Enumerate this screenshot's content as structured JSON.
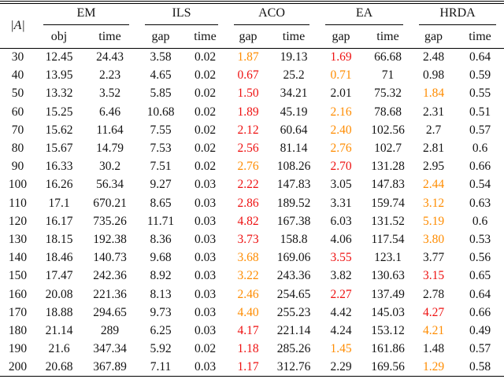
{
  "colors": {
    "red": "#ee1111",
    "orange": "#ff8c00",
    "ink": "#141414"
  },
  "table": {
    "corner_label": "|A|",
    "groups": [
      {
        "label": "EM",
        "sub": [
          "obj",
          "time"
        ]
      },
      {
        "label": "ILS",
        "sub": [
          "gap",
          "time"
        ]
      },
      {
        "label": "ACO",
        "sub": [
          "gap",
          "time"
        ]
      },
      {
        "label": "EA",
        "sub": [
          "gap",
          "time"
        ]
      },
      {
        "label": "HRDA",
        "sub": [
          "gap",
          "time"
        ]
      }
    ],
    "rows": [
      {
        "a": "30",
        "em_obj": "12.45",
        "em_time": "24.43",
        "ils_gap": "3.58",
        "ils_time": "0.02",
        "aco_gap": "1.87",
        "aco_gap_color": "orange",
        "aco_time": "19.13",
        "ea_gap": "1.69",
        "ea_gap_color": "red",
        "ea_time": "66.68",
        "hrda_gap": "2.48",
        "hrda_gap_color": "black",
        "hrda_time": "0.64"
      },
      {
        "a": "40",
        "em_obj": "13.95",
        "em_time": "2.23",
        "ils_gap": "4.65",
        "ils_time": "0.02",
        "aco_gap": "0.67",
        "aco_gap_color": "red",
        "aco_time": "25.2",
        "ea_gap": "0.71",
        "ea_gap_color": "orange",
        "ea_time": "71",
        "hrda_gap": "0.98",
        "hrda_gap_color": "black",
        "hrda_time": "0.59"
      },
      {
        "a": "50",
        "em_obj": "13.32",
        "em_time": "3.52",
        "ils_gap": "5.85",
        "ils_time": "0.02",
        "aco_gap": "1.50",
        "aco_gap_color": "red",
        "aco_time": "34.21",
        "ea_gap": "2.01",
        "ea_gap_color": "black",
        "ea_time": "75.32",
        "hrda_gap": "1.84",
        "hrda_gap_color": "orange",
        "hrda_time": "0.55"
      },
      {
        "a": "60",
        "em_obj": "15.25",
        "em_time": "6.46",
        "ils_gap": "10.68",
        "ils_time": "0.02",
        "aco_gap": "1.89",
        "aco_gap_color": "red",
        "aco_time": "45.19",
        "ea_gap": "2.16",
        "ea_gap_color": "orange",
        "ea_time": "78.68",
        "hrda_gap": "2.31",
        "hrda_gap_color": "black",
        "hrda_time": "0.51"
      },
      {
        "a": "70",
        "em_obj": "15.62",
        "em_time": "11.64",
        "ils_gap": "7.55",
        "ils_time": "0.02",
        "aco_gap": "2.12",
        "aco_gap_color": "red",
        "aco_time": "60.64",
        "ea_gap": "2.40",
        "ea_gap_color": "orange",
        "ea_time": "102.56",
        "hrda_gap": "2.7",
        "hrda_gap_color": "black",
        "hrda_time": "0.57"
      },
      {
        "a": "80",
        "em_obj": "15.67",
        "em_time": "14.79",
        "ils_gap": "7.53",
        "ils_time": "0.02",
        "aco_gap": "2.56",
        "aco_gap_color": "red",
        "aco_time": "81.14",
        "ea_gap": "2.76",
        "ea_gap_color": "orange",
        "ea_time": "102.7",
        "hrda_gap": "2.81",
        "hrda_gap_color": "black",
        "hrda_time": "0.6"
      },
      {
        "a": "90",
        "em_obj": "16.33",
        "em_time": "30.2",
        "ils_gap": "7.51",
        "ils_time": "0.02",
        "aco_gap": "2.76",
        "aco_gap_color": "orange",
        "aco_time": "108.26",
        "ea_gap": "2.70",
        "ea_gap_color": "red",
        "ea_time": "131.28",
        "hrda_gap": "2.95",
        "hrda_gap_color": "black",
        "hrda_time": "0.66"
      },
      {
        "a": "100",
        "em_obj": "16.26",
        "em_time": "56.34",
        "ils_gap": "9.27",
        "ils_time": "0.03",
        "aco_gap": "2.22",
        "aco_gap_color": "red",
        "aco_time": "147.83",
        "ea_gap": "3.05",
        "ea_gap_color": "black",
        "ea_time": "147.83",
        "hrda_gap": "2.44",
        "hrda_gap_color": "orange",
        "hrda_time": "0.54"
      },
      {
        "a": "110",
        "em_obj": "17.1",
        "em_time": "670.21",
        "ils_gap": "8.65",
        "ils_time": "0.03",
        "aco_gap": "2.86",
        "aco_gap_color": "red",
        "aco_time": "189.52",
        "ea_gap": "3.31",
        "ea_gap_color": "black",
        "ea_time": "159.74",
        "hrda_gap": "3.12",
        "hrda_gap_color": "orange",
        "hrda_time": "0.63"
      },
      {
        "a": "120",
        "em_obj": "16.17",
        "em_time": "735.26",
        "ils_gap": "11.71",
        "ils_time": "0.03",
        "aco_gap": "4.82",
        "aco_gap_color": "red",
        "aco_time": "167.38",
        "ea_gap": "6.03",
        "ea_gap_color": "black",
        "ea_time": "131.52",
        "hrda_gap": "5.19",
        "hrda_gap_color": "orange",
        "hrda_time": "0.6"
      },
      {
        "a": "130",
        "em_obj": "18.15",
        "em_time": "192.38",
        "ils_gap": "8.36",
        "ils_time": "0.03",
        "aco_gap": "3.73",
        "aco_gap_color": "red",
        "aco_time": "158.8",
        "ea_gap": "4.06",
        "ea_gap_color": "black",
        "ea_time": "117.54",
        "hrda_gap": "3.80",
        "hrda_gap_color": "orange",
        "hrda_time": "0.53"
      },
      {
        "a": "140",
        "em_obj": "18.46",
        "em_time": "140.73",
        "ils_gap": "9.68",
        "ils_time": "0.03",
        "aco_gap": "3.68",
        "aco_gap_color": "orange",
        "aco_time": "169.06",
        "ea_gap": "3.55",
        "ea_gap_color": "red",
        "ea_time": "123.1",
        "hrda_gap": "3.77",
        "hrda_gap_color": "black",
        "hrda_time": "0.56"
      },
      {
        "a": "150",
        "em_obj": "17.47",
        "em_time": "242.36",
        "ils_gap": "8.92",
        "ils_time": "0.03",
        "aco_gap": "3.22",
        "aco_gap_color": "orange",
        "aco_time": "243.36",
        "ea_gap": "3.82",
        "ea_gap_color": "black",
        "ea_time": "130.63",
        "hrda_gap": "3.15",
        "hrda_gap_color": "red",
        "hrda_time": "0.65"
      },
      {
        "a": "160",
        "em_obj": "20.08",
        "em_time": "221.36",
        "ils_gap": "8.13",
        "ils_time": "0.03",
        "aco_gap": "2.46",
        "aco_gap_color": "orange",
        "aco_time": "254.65",
        "ea_gap": "2.27",
        "ea_gap_color": "red",
        "ea_time": "137.49",
        "hrda_gap": "2.78",
        "hrda_gap_color": "black",
        "hrda_time": "0.64"
      },
      {
        "a": "170",
        "em_obj": "18.88",
        "em_time": "294.65",
        "ils_gap": "9.73",
        "ils_time": "0.03",
        "aco_gap": "4.40",
        "aco_gap_color": "orange",
        "aco_time": "255.23",
        "ea_gap": "4.42",
        "ea_gap_color": "black",
        "ea_time": "145.03",
        "hrda_gap": "4.27",
        "hrda_gap_color": "red",
        "hrda_time": "0.66"
      },
      {
        "a": "180",
        "em_obj": "21.14",
        "em_time": "289",
        "ils_gap": "6.25",
        "ils_time": "0.03",
        "aco_gap": "4.17",
        "aco_gap_color": "red",
        "aco_time": "221.14",
        "ea_gap": "4.24",
        "ea_gap_color": "black",
        "ea_time": "153.12",
        "hrda_gap": "4.21",
        "hrda_gap_color": "orange",
        "hrda_time": "0.49"
      },
      {
        "a": "190",
        "em_obj": "21.6",
        "em_time": "347.34",
        "ils_gap": "5.92",
        "ils_time": "0.02",
        "aco_gap": "1.18",
        "aco_gap_color": "red",
        "aco_time": "285.26",
        "ea_gap": "1.45",
        "ea_gap_color": "orange",
        "ea_time": "161.86",
        "hrda_gap": "1.48",
        "hrda_gap_color": "black",
        "hrda_time": "0.57"
      },
      {
        "a": "200",
        "em_obj": "20.68",
        "em_time": "367.89",
        "ils_gap": "7.11",
        "ils_time": "0.03",
        "aco_gap": "1.17",
        "aco_gap_color": "red",
        "aco_time": "312.76",
        "ea_gap": "2.29",
        "ea_gap_color": "black",
        "ea_time": "169.56",
        "hrda_gap": "1.29",
        "hrda_gap_color": "orange",
        "hrda_time": "0.58"
      }
    ]
  }
}
